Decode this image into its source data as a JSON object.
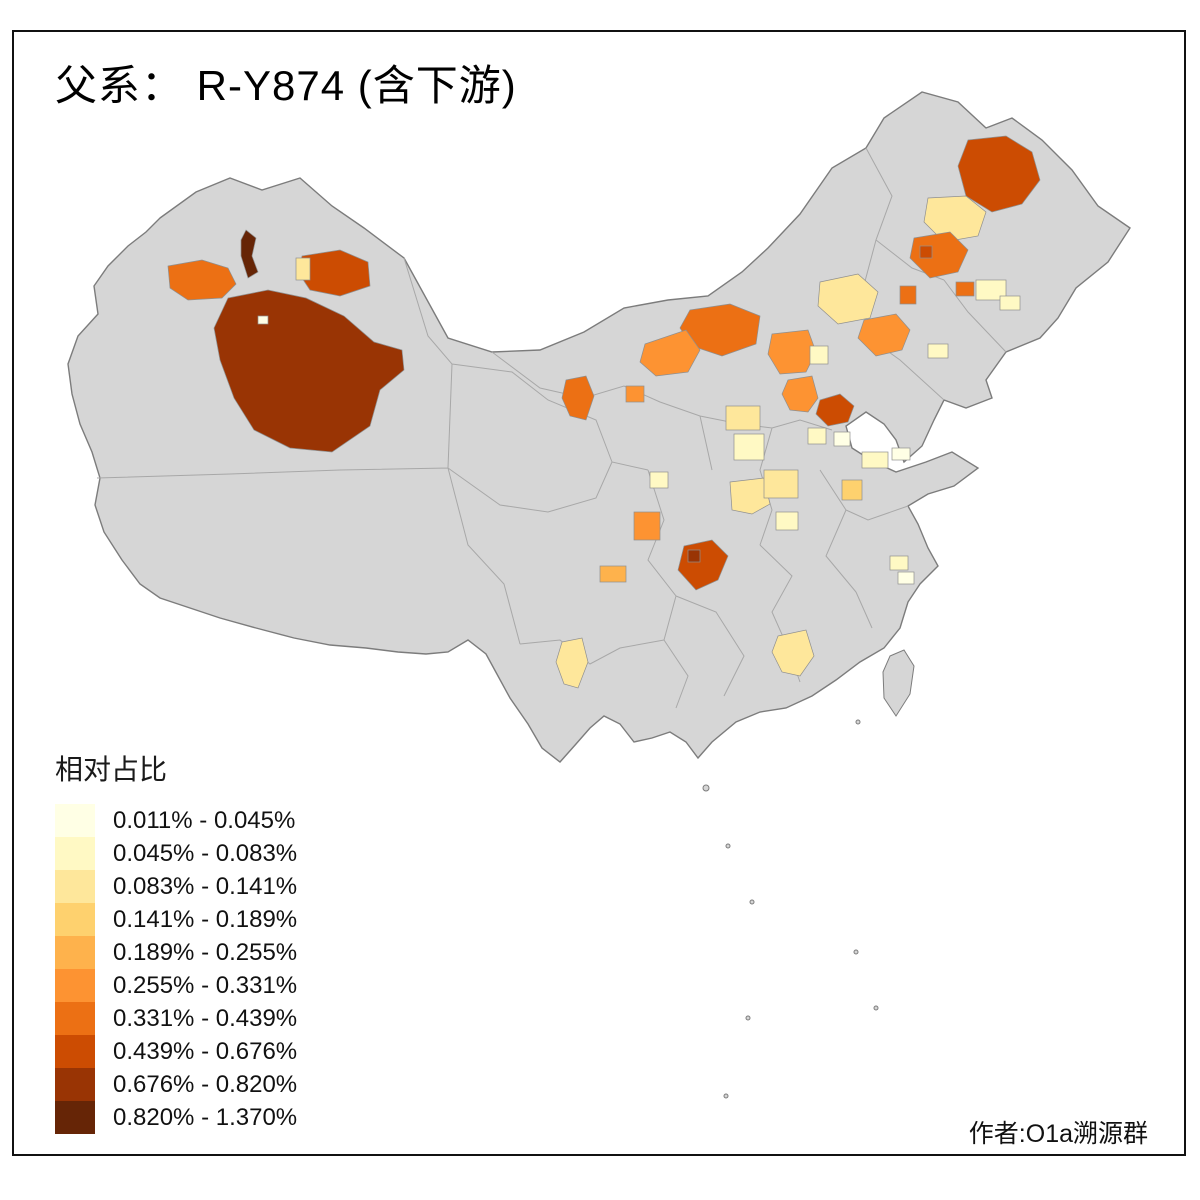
{
  "title": "父系： R-Y874 (含下游)",
  "credit": "作者:O1a溯源群",
  "legend": {
    "title": "相对占比",
    "classes": [
      {
        "label": "0.011% - 0.045%",
        "color": "#FFFFE5"
      },
      {
        "label": "0.045% - 0.083%",
        "color": "#FFF9C4"
      },
      {
        "label": "0.083% - 0.141%",
        "color": "#FEE79B"
      },
      {
        "label": "0.141% - 0.189%",
        "color": "#FED16E"
      },
      {
        "label": "0.189% - 0.255%",
        "color": "#FEB24C"
      },
      {
        "label": "0.255% - 0.331%",
        "color": "#FD9332"
      },
      {
        "label": "0.331% - 0.439%",
        "color": "#EC7014"
      },
      {
        "label": "0.439% - 0.676%",
        "color": "#CC4C02"
      },
      {
        "label": "0.676% - 0.820%",
        "color": "#993404"
      },
      {
        "label": "0.820% - 1.370%",
        "color": "#662506"
      }
    ]
  },
  "map": {
    "base_fill": "#D6D6D6",
    "boundary_color": "#A8A8A8",
    "outline_color": "#7C7C7C",
    "background": "#FFFFFF"
  }
}
